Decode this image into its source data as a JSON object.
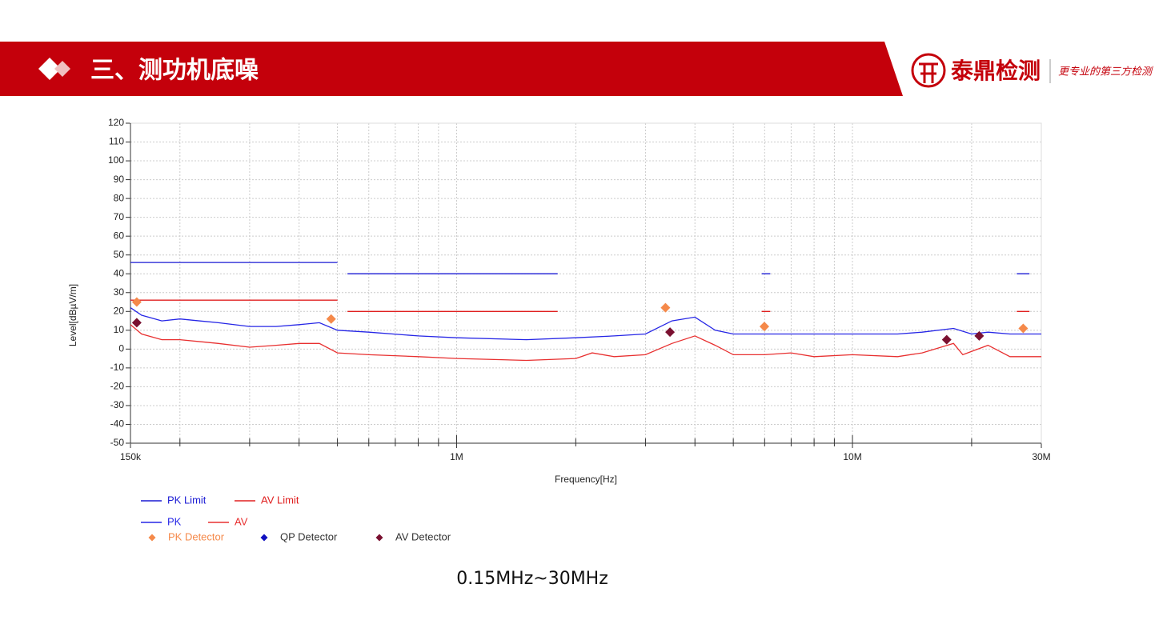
{
  "header": {
    "title": "三、测功机底噪",
    "logo": "泰鼎检测",
    "slogan": "更专业的第三方检测"
  },
  "caption": "0.15MHz~30MHz",
  "chart_data": {
    "type": "line",
    "x_label": "Frequency[Hz]",
    "y_label": "Level[dBµV/m]",
    "xscale": "log",
    "grid": true,
    "xlim": [
      150000,
      30000000
    ],
    "xticks": [
      {
        "value": 150000,
        "label": "150k"
      },
      {
        "value": 1000000,
        "label": "1M"
      },
      {
        "value": 10000000,
        "label": "10M"
      },
      {
        "value": 30000000,
        "label": "30M"
      }
    ],
    "xminorticks": [
      200000,
      300000,
      400000,
      500000,
      600000,
      700000,
      800000,
      900000,
      2000000,
      3000000,
      4000000,
      5000000,
      6000000,
      7000000,
      8000000,
      9000000,
      20000000
    ],
    "ylim": [
      -50,
      120
    ],
    "yticks": [
      -50,
      -40,
      -30,
      -20,
      -10,
      0,
      10,
      20,
      30,
      40,
      50,
      60,
      70,
      80,
      90,
      100,
      110,
      120
    ],
    "series": [
      {
        "name": "PK Limit",
        "mode": "line",
        "color": "#1a1ad4",
        "x": [
          150000,
          500000,
          510000,
          530000,
          1800000,
          3000000,
          5900000,
          6200000,
          10000000,
          26000000,
          28000000
        ],
        "values": [
          46,
          46,
          null,
          40,
          40,
          null,
          40,
          40,
          null,
          40,
          40
        ]
      },
      {
        "name": "AV Limit",
        "mode": "line",
        "color": "#e02020",
        "x": [
          150000,
          500000,
          510000,
          530000,
          1800000,
          3000000,
          5900000,
          6200000,
          10000000,
          26000000,
          28000000
        ],
        "values": [
          26,
          26,
          null,
          20,
          20,
          null,
          20,
          20,
          null,
          20,
          20
        ]
      },
      {
        "name": "PK",
        "mode": "line",
        "color": "#2626e6",
        "x": [
          150000,
          160000,
          180000,
          200000,
          250000,
          300000,
          350000,
          400000,
          450000,
          500000,
          600000,
          800000,
          1000000,
          1500000,
          2000000,
          2500000,
          3000000,
          3500000,
          4000000,
          4500000,
          5000000,
          6000000,
          8000000,
          10000000,
          13000000,
          15000000,
          18000000,
          20000000,
          22000000,
          25000000,
          30000000
        ],
        "values": [
          22,
          18,
          15,
          16,
          14,
          12,
          12,
          13,
          14,
          10,
          9,
          7,
          6,
          5,
          6,
          7,
          8,
          15,
          17,
          10,
          8,
          8,
          8,
          8,
          8,
          9,
          11,
          8,
          9,
          8,
          8
        ]
      },
      {
        "name": "AV",
        "mode": "line",
        "color": "#e83030",
        "x": [
          150000,
          160000,
          180000,
          200000,
          250000,
          300000,
          350000,
          400000,
          450000,
          500000,
          600000,
          800000,
          1000000,
          1500000,
          2000000,
          2200000,
          2500000,
          3000000,
          3500000,
          4000000,
          4500000,
          5000000,
          6000000,
          7000000,
          8000000,
          10000000,
          13000000,
          15000000,
          18000000,
          19000000,
          22000000,
          25000000,
          30000000
        ],
        "values": [
          13,
          8,
          5,
          5,
          3,
          1,
          2,
          3,
          3,
          -2,
          -3,
          -4,
          -5,
          -6,
          -5,
          -2,
          -4,
          -3,
          3,
          7,
          2,
          -3,
          -3,
          -2,
          -4,
          -3,
          -4,
          -2,
          3,
          -3,
          2,
          -4,
          -4
        ]
      },
      {
        "name": "PK Detector",
        "mode": "diamond",
        "color": "#f5894a",
        "x": [
          155600,
          482000,
          3370000,
          5990000,
          27000000
        ],
        "values": [
          25,
          16,
          22,
          12,
          11
        ]
      },
      {
        "name": "QP Detector",
        "mode": "diamond",
        "color": "#1010c0",
        "x": [],
        "values": []
      },
      {
        "name": "AV Detector",
        "mode": "diamond",
        "color": "#7a1030",
        "x": [
          155600,
          3460000,
          17300000,
          20900000
        ],
        "values": [
          14,
          9,
          5,
          7
        ]
      }
    ]
  }
}
